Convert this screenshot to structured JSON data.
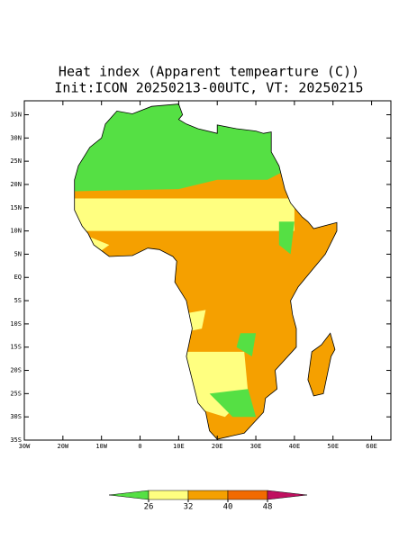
{
  "map": {
    "title": "Heat index (Apparent tempearture (C))",
    "subtitle": "Init:ICON 20250213-00UTC, VT: 20250215",
    "lonlim": [
      -30,
      65
    ],
    "latlim": [
      -35,
      38
    ],
    "lat_ticks": [
      {
        "value": 35,
        "label": "35N"
      },
      {
        "value": 30,
        "label": "30N"
      },
      {
        "value": 25,
        "label": "25N"
      },
      {
        "value": 20,
        "label": "20N"
      },
      {
        "value": 15,
        "label": "15N"
      },
      {
        "value": 10,
        "label": "10N"
      },
      {
        "value": 5,
        "label": "5N"
      },
      {
        "value": 0,
        "label": "EQ"
      },
      {
        "value": -5,
        "label": "5S"
      },
      {
        "value": -10,
        "label": "10S"
      },
      {
        "value": -15,
        "label": "15S"
      },
      {
        "value": -20,
        "label": "20S"
      },
      {
        "value": -25,
        "label": "25S"
      },
      {
        "value": -30,
        "label": "30S"
      },
      {
        "value": -35,
        "label": "35S"
      }
    ],
    "lon_ticks": [
      {
        "value": -30,
        "label": "30W"
      },
      {
        "value": -20,
        "label": "20W"
      },
      {
        "value": -10,
        "label": "10W"
      },
      0,
      {
        "value": 10,
        "label": "10E"
      },
      {
        "value": 20,
        "label": "20E"
      },
      {
        "value": 30,
        "label": "30E"
      },
      {
        "value": 40,
        "label": "40E"
      },
      {
        "value": 50,
        "label": "50E"
      },
      {
        "value": 60,
        "label": "60E"
      }
    ],
    "colorbar": {
      "levels": [
        26,
        32,
        40,
        48
      ],
      "colors": [
        "#55e044",
        "#ffff80",
        "#f5a000",
        "#f26a00",
        "#c01060"
      ]
    }
  }
}
